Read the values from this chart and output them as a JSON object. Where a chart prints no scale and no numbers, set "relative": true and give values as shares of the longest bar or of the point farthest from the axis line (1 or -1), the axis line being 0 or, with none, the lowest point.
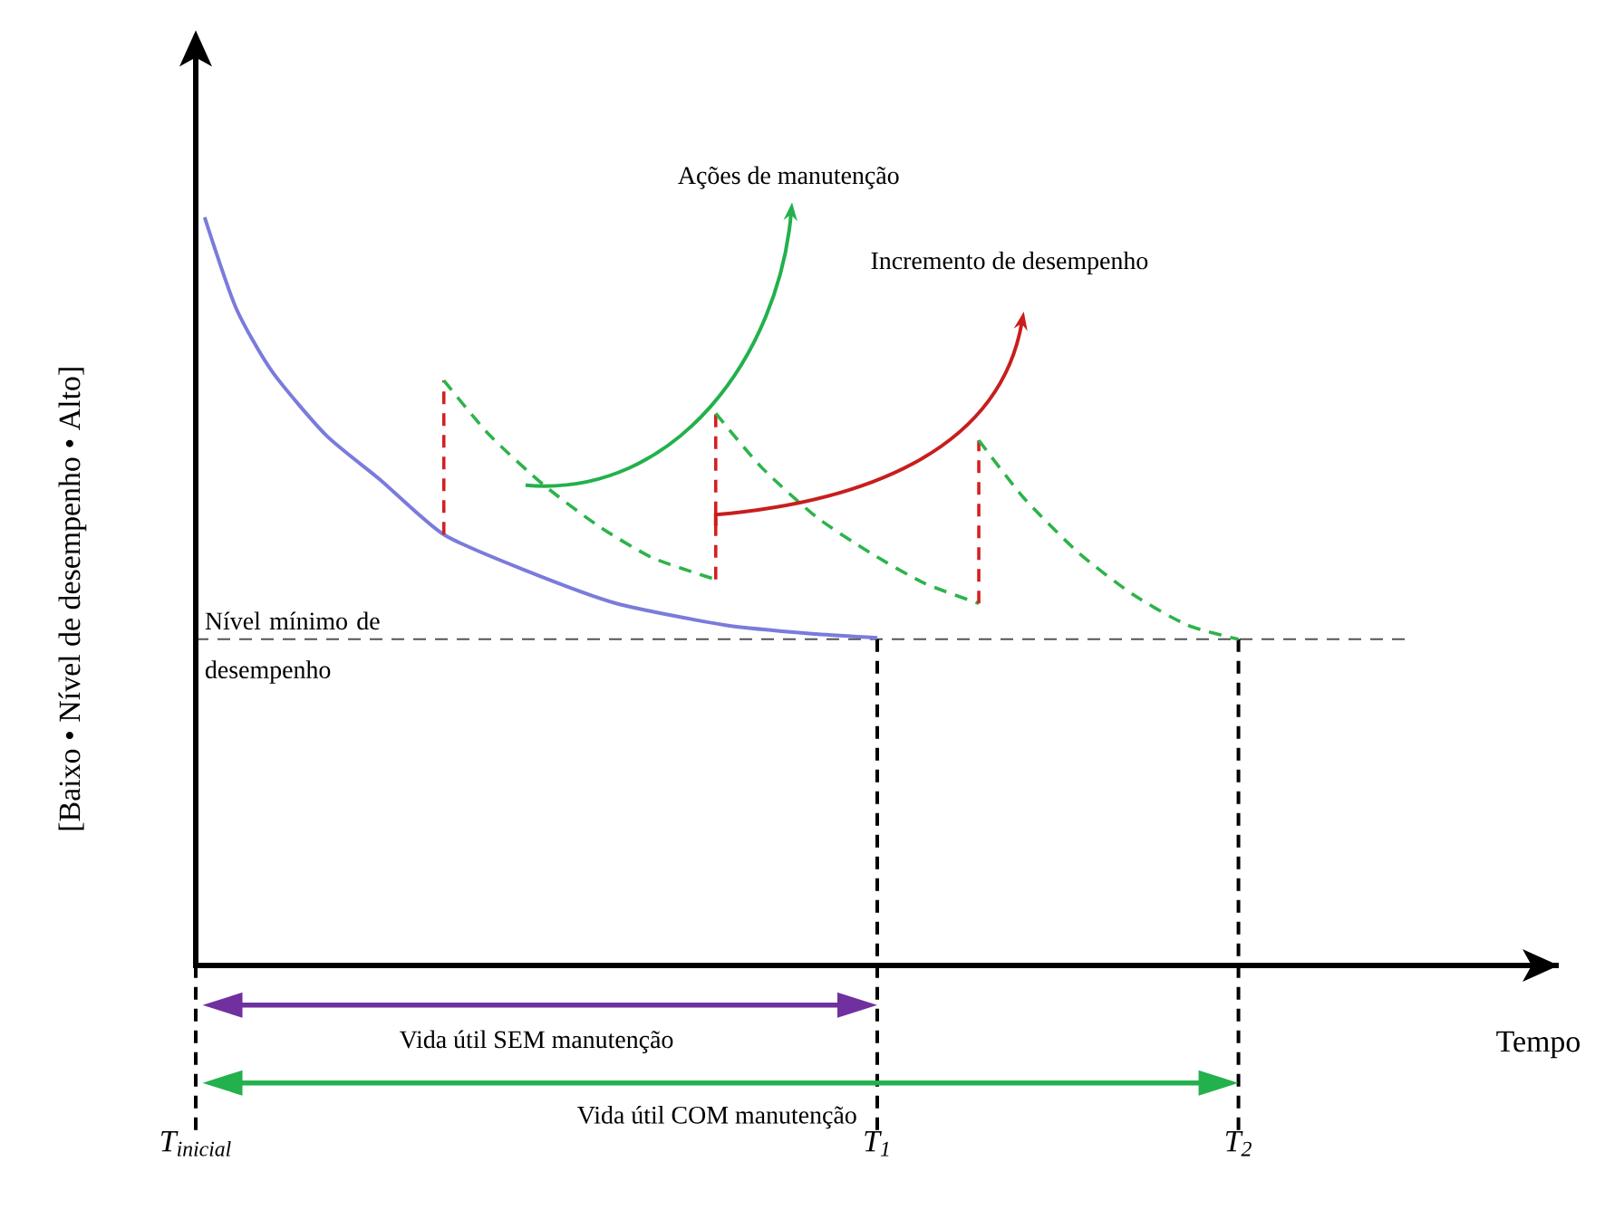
{
  "chart_data": {
    "type": "line",
    "relative": true,
    "xlabel": "Tempo",
    "ylabel": "[Baixo • Nível de desempenho • Alto]",
    "xlim": [
      0,
      2.0
    ],
    "xticks": [
      {
        "value": 0,
        "label": "T$_{inicial}$"
      },
      {
        "value": 1,
        "label": "T$_{1}$"
      },
      {
        "value": 1.53,
        "label": "T$_{2}$"
      }
    ],
    "series": [
      {
        "color": "#7b7bdc",
        "line_style": "solid",
        "x": [
          0.013,
          0.059,
          0.112,
          0.191,
          0.271,
          0.364,
          0.484,
          0.617,
          0.777,
          0.91,
          1.0
        ],
        "values": [
          1.0,
          0.879,
          0.794,
          0.709,
          0.649,
          0.576,
          0.528,
          0.484,
          0.455,
          0.443,
          0.438
        ]
      },
      {
        "color": "#d42020",
        "line_style": "dashed",
        "x": [
          0.364,
          0.364
        ],
        "values": [
          0.576,
          0.782
        ]
      },
      {
        "color": "#2db34a",
        "line_style": "dashed",
        "x": [
          0.364,
          0.431,
          0.511,
          0.59,
          0.67,
          0.763
        ],
        "values": [
          0.782,
          0.709,
          0.642,
          0.588,
          0.545,
          0.516
        ]
      },
      {
        "color": "#d42020",
        "line_style": "dashed",
        "x": [
          0.763,
          0.763
        ],
        "values": [
          0.516,
          0.738
        ]
      },
      {
        "color": "#2db34a",
        "line_style": "dashed",
        "x": [
          0.763,
          0.83,
          0.91,
          0.989,
          1.069,
          1.149
        ],
        "values": [
          0.738,
          0.666,
          0.6,
          0.552,
          0.511,
          0.484
        ]
      },
      {
        "color": "#d42020",
        "line_style": "dashed",
        "x": [
          1.149,
          1.149
        ],
        "values": [
          0.484,
          0.702
        ]
      },
      {
        "color": "#2db34a",
        "line_style": "dashed",
        "x": [
          1.149,
          1.215,
          1.295,
          1.375,
          1.455,
          1.53
        ],
        "values": [
          0.702,
          0.625,
          0.552,
          0.496,
          0.455,
          0.436
        ]
      }
    ],
    "ref_lines": [
      {
        "axis": "y",
        "value": 0.436,
        "label": "Nível mínimo de desempenho",
        "color": "#555555",
        "line_style": "dashed"
      },
      {
        "axis": "x",
        "value": 0,
        "color": "#000000",
        "line_style": "dashed"
      },
      {
        "axis": "x",
        "value": 1,
        "color": "#000000",
        "line_style": "dashed"
      },
      {
        "axis": "x",
        "value": 1.53,
        "color": "#000000",
        "line_style": "dashed"
      }
    ],
    "annotations": [
      "Ações de manutenção",
      "Incremento de desempenho",
      "Vida útil SEM manutenção",
      "Vida útil COM manutenção"
    ]
  }
}
